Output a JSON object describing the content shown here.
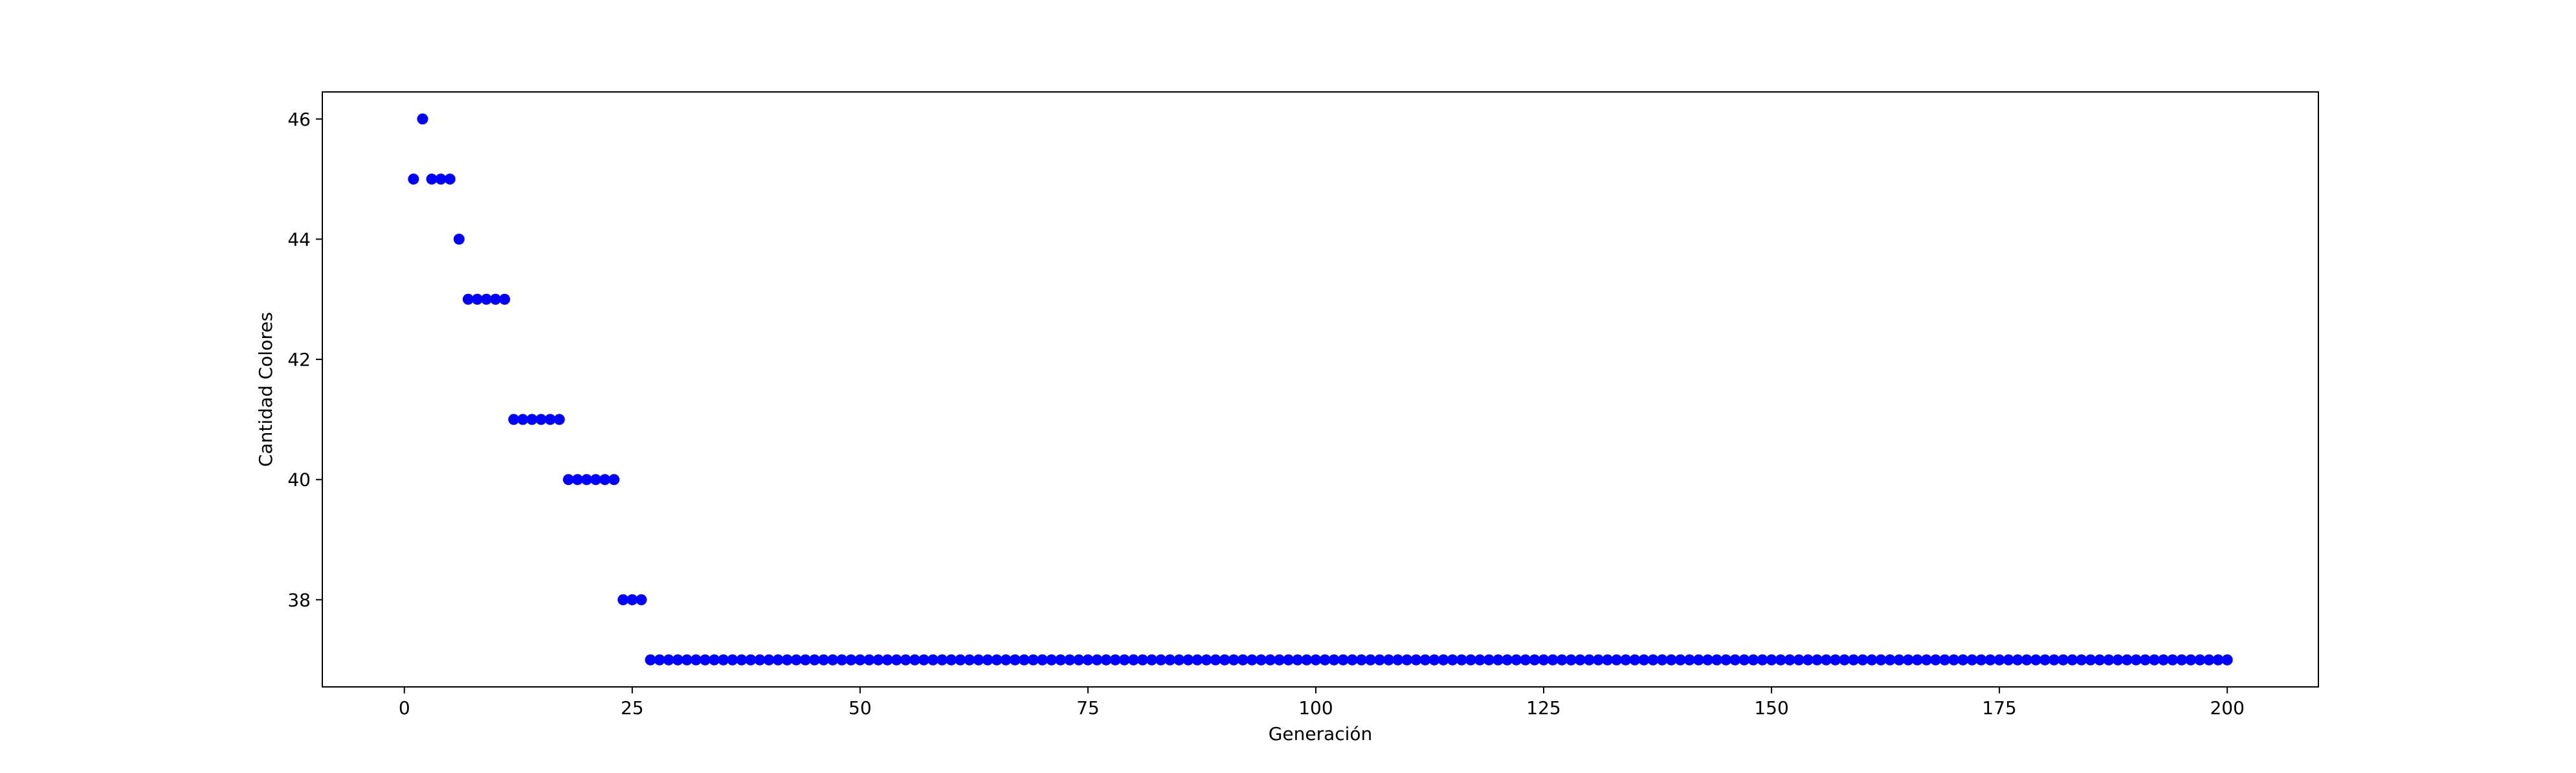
{
  "chart_data": {
    "type": "scatter",
    "xlabel": "Generación",
    "ylabel": "Cantidad Colores",
    "xlim": [
      -9,
      210
    ],
    "ylim": [
      36.55,
      46.45
    ],
    "xticks": [
      0,
      25,
      50,
      75,
      100,
      125,
      150,
      175,
      200
    ],
    "yticks": [
      38,
      40,
      42,
      44,
      46
    ],
    "grid": false,
    "marker_color": "#0000ff",
    "series": [
      {
        "x": [
          1,
          2,
          3,
          4,
          5,
          6,
          7,
          8,
          9,
          10,
          11,
          12,
          13,
          14,
          15,
          16,
          17,
          18,
          19,
          20,
          21,
          22,
          23,
          24,
          25,
          26,
          27,
          28,
          29,
          30,
          31,
          32,
          33,
          34,
          35,
          36,
          37,
          38,
          39,
          40,
          41,
          42,
          43,
          44,
          45,
          46,
          47,
          48,
          49,
          50,
          51,
          52,
          53,
          54,
          55,
          56,
          57,
          58,
          59,
          60,
          61,
          62,
          63,
          64,
          65,
          66,
          67,
          68,
          69,
          70,
          71,
          72,
          73,
          74,
          75,
          76,
          77,
          78,
          79,
          80,
          81,
          82,
          83,
          84,
          85,
          86,
          87,
          88,
          89,
          90,
          91,
          92,
          93,
          94,
          95,
          96,
          97,
          98,
          99,
          100,
          101,
          102,
          103,
          104,
          105,
          106,
          107,
          108,
          109,
          110,
          111,
          112,
          113,
          114,
          115,
          116,
          117,
          118,
          119,
          120,
          121,
          122,
          123,
          124,
          125,
          126,
          127,
          128,
          129,
          130,
          131,
          132,
          133,
          134,
          135,
          136,
          137,
          138,
          139,
          140,
          141,
          142,
          143,
          144,
          145,
          146,
          147,
          148,
          149,
          150,
          151,
          152,
          153,
          154,
          155,
          156,
          157,
          158,
          159,
          160,
          161,
          162,
          163,
          164,
          165,
          166,
          167,
          168,
          169,
          170,
          171,
          172,
          173,
          174,
          175,
          176,
          177,
          178,
          179,
          180,
          181,
          182,
          183,
          184,
          185,
          186,
          187,
          188,
          189,
          190,
          191,
          192,
          193,
          194,
          195,
          196,
          197,
          198,
          199,
          200
        ],
        "y": [
          45,
          46,
          45,
          45,
          45,
          44,
          43,
          43,
          43,
          43,
          43,
          41,
          41,
          41,
          41,
          41,
          41,
          40,
          40,
          40,
          40,
          40,
          40,
          38,
          38,
          38,
          37,
          37,
          37,
          37,
          37,
          37,
          37,
          37,
          37,
          37,
          37,
          37,
          37,
          37,
          37,
          37,
          37,
          37,
          37,
          37,
          37,
          37,
          37,
          37,
          37,
          37,
          37,
          37,
          37,
          37,
          37,
          37,
          37,
          37,
          37,
          37,
          37,
          37,
          37,
          37,
          37,
          37,
          37,
          37,
          37,
          37,
          37,
          37,
          37,
          37,
          37,
          37,
          37,
          37,
          37,
          37,
          37,
          37,
          37,
          37,
          37,
          37,
          37,
          37,
          37,
          37,
          37,
          37,
          37,
          37,
          37,
          37,
          37,
          37,
          37,
          37,
          37,
          37,
          37,
          37,
          37,
          37,
          37,
          37,
          37,
          37,
          37,
          37,
          37,
          37,
          37,
          37,
          37,
          37,
          37,
          37,
          37,
          37,
          37,
          37,
          37,
          37,
          37,
          37,
          37,
          37,
          37,
          37,
          37,
          37,
          37,
          37,
          37,
          37,
          37,
          37,
          37,
          37,
          37,
          37,
          37,
          37,
          37,
          37,
          37,
          37,
          37,
          37,
          37,
          37,
          37,
          37,
          37,
          37,
          37,
          37,
          37,
          37,
          37,
          37,
          37,
          37,
          37,
          37,
          37,
          37,
          37,
          37,
          37,
          37,
          37,
          37,
          37,
          37,
          37,
          37,
          37,
          37,
          37,
          37,
          37,
          37,
          37,
          37,
          37,
          37,
          37,
          37,
          37,
          37,
          37,
          37,
          37,
          37
        ]
      }
    ]
  }
}
